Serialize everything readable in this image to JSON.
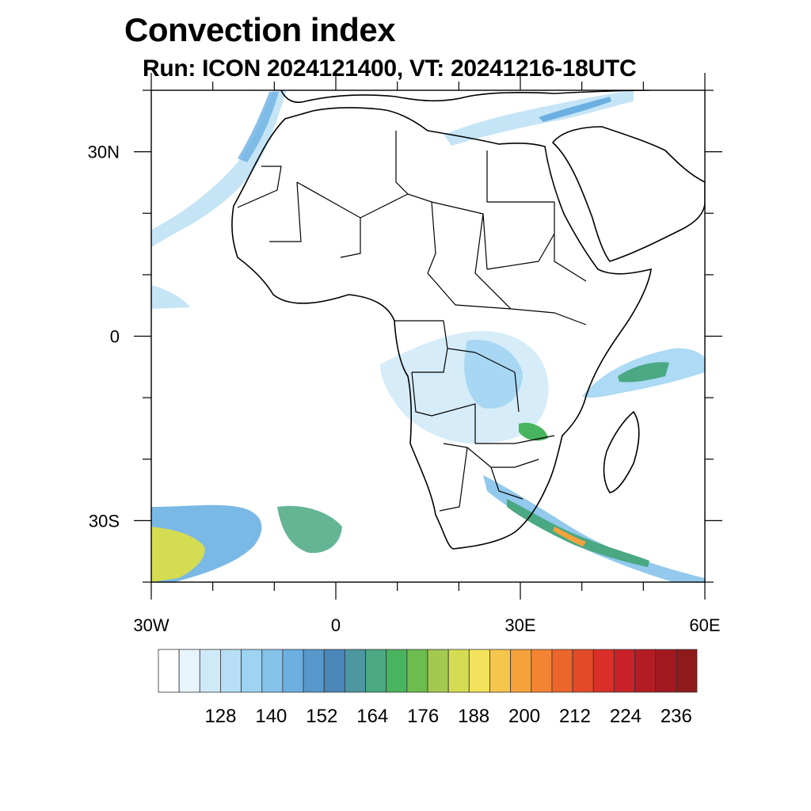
{
  "title": "Convection index",
  "subtitle": "Run: ICON 2024121400,  VT: 20241216-18UTC",
  "map": {
    "lon_range": [
      -30,
      60
    ],
    "lat_range": [
      -40,
      40
    ],
    "lat_labels": [
      {
        "lat": 30,
        "text": "30N"
      },
      {
        "lat": 0,
        "text": "0"
      },
      {
        "lat": -30,
        "text": "30S"
      }
    ],
    "lon_labels": [
      {
        "lon": -30,
        "text": "30W"
      },
      {
        "lon": 0,
        "text": "0"
      },
      {
        "lon": 30,
        "text": "30E"
      },
      {
        "lon": 60,
        "text": "60E"
      }
    ]
  },
  "colorbar": {
    "colors": [
      "#ffffff",
      "#e8f4fc",
      "#cfe9f8",
      "#b7def4",
      "#9fd3f2",
      "#86c3ea",
      "#6cb0e2",
      "#5698cc",
      "#4a86b8",
      "#4c97a0",
      "#4aa882",
      "#49b45e",
      "#6cbc4e",
      "#a4c950",
      "#d4dc52",
      "#f2e25c",
      "#f6c54c",
      "#f5a23c",
      "#f28433",
      "#ec652a",
      "#e34a28",
      "#d92f28",
      "#c92228",
      "#b41c24",
      "#a1191f",
      "#8e1a1c"
    ],
    "labels": [
      "128",
      "140",
      "152",
      "164",
      "176",
      "188",
      "200",
      "212",
      "224",
      "236"
    ]
  }
}
